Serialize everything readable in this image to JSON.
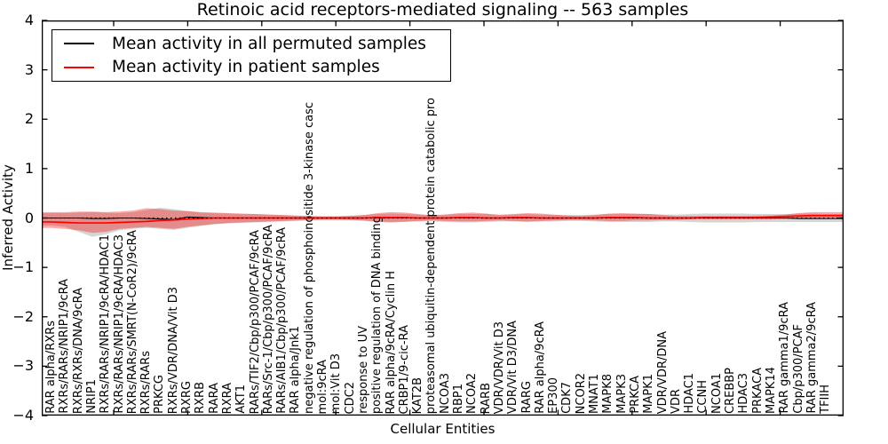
{
  "figure": {
    "title": "Retinoic acid receptors-mediated signaling -- 563 samples",
    "xlabel": "Cellular Entities",
    "ylabel": "Inferred Activity"
  },
  "legend": {
    "entries": [
      {
        "label": "Mean activity in all permuted samples",
        "color": "#000000"
      },
      {
        "label": "Mean activity in patient samples",
        "color": "#ff0000"
      }
    ]
  },
  "chart_data": {
    "type": "line",
    "title": "Retinoic acid receptors-mediated signaling -- 563 samples",
    "xlabel": "Cellular Entities",
    "ylabel": "Inferred Activity",
    "ylim": [
      -4,
      4
    ],
    "yticks": [
      4,
      3,
      2,
      1,
      0,
      -1,
      -2,
      -3,
      -4
    ],
    "ytick_labels": [
      "4",
      "3",
      "2",
      "1",
      "0",
      "−1",
      "−2",
      "−3",
      "−4"
    ],
    "grid": false,
    "legend_position": "upper left",
    "zero_line": {
      "value": 0,
      "style": "dotted",
      "color": "#000000"
    },
    "categories": [
      "RAR alpha/RXRs",
      "RXRs/RARs/NRIP1/9cRA",
      "RXRs/RXRs/DNA/9cRA",
      "NRIP1",
      "RXRs/RARs/NRIP1/9cRA/HDAC1",
      "RXRs/RARs/NRIP1/9cRA/HDAC3",
      "RXRs/RARs/SMRT(N-CoR2)/9cRA",
      "RXRs/RARs",
      "PRKCG",
      "RXRs/VDR/DNA/Vit D3",
      "RXRG",
      "RXRB",
      "RARA",
      "RXRA",
      "AKT1",
      "RARs/TIF2/Cbp/p300/PCAF/9cRA",
      "RARs/Src-1/Cbp/p300/PCAF/9cRA",
      "RARs/AIB1/Cbp/p300/PCAF/9cRA",
      "RAR alpha/Jnk1",
      "negative regulation of phosphoinositide 3-kinase casc",
      "mol:9cRA",
      "mol:Vit D3",
      "CDC2",
      "response to UV",
      "positive regulation of DNA binding",
      "RAR alpha/9cRA/Cyclin H",
      "CRBP1/9-cic-RA",
      "KAT2B",
      "proteasomal ubiquitin-dependent protein catabolic pro",
      "NCOA3",
      "RBP1",
      "NCOA2",
      "RARB",
      "VDR/VDR/Vit D3",
      "VDR/Vit D3/DNA",
      "RARG",
      "RAR alpha/9cRA",
      "EP300",
      "CDK7",
      "NCOR2",
      "MNAT1",
      "MAPK8",
      "MAPK3",
      "PRKCA",
      "MAPK1",
      "VDR/VDR/DNA",
      "VDR",
      "HDAC1",
      "CCNH",
      "NCOA1",
      "CREBBP",
      "HDAC3",
      "PRKACA",
      "MAPK14",
      "RAR gamma1/9cRA",
      "Cbp/p300/PCAF",
      "RAR gamma2/9cRA",
      "TFIIH"
    ],
    "series": [
      {
        "name": "Mean activity in all permuted samples",
        "kind": "line",
        "color": "#000000",
        "values": [
          0,
          0,
          0,
          -0.01,
          -0.01,
          0,
          0,
          -0.01,
          -0.02,
          -0.03,
          0.02,
          0.01,
          0,
          0,
          0,
          0,
          0,
          0,
          0,
          0,
          0,
          0,
          0,
          0,
          0,
          0,
          0,
          0,
          0,
          0,
          0,
          0,
          0,
          0,
          0,
          0,
          0,
          0,
          0,
          0,
          0,
          0,
          0,
          0,
          0,
          0,
          0,
          0,
          0,
          0,
          0,
          0,
          0,
          0,
          0,
          -0.01,
          -0.01,
          -0.01
        ]
      },
      {
        "name": "Mean activity in patient samples",
        "kind": "line",
        "color": "#ff0000",
        "values": [
          -0.08,
          -0.09,
          -0.1,
          -0.1,
          -0.1,
          -0.09,
          -0.08,
          -0.07,
          -0.05,
          -0.04,
          -0.02,
          -0.01,
          0,
          0,
          0,
          0,
          0,
          0,
          0,
          0,
          0,
          0,
          0,
          0,
          0.01,
          0.01,
          0.01,
          0,
          0,
          0,
          0.01,
          0.01,
          0,
          0,
          0.01,
          0.01,
          0,
          0,
          0,
          0,
          0,
          0.01,
          0.01,
          0.01,
          0,
          0,
          0,
          0,
          0.01,
          0.01,
          0.01,
          0.01,
          0.01,
          0.02,
          0.03,
          0.04,
          0.05,
          0.05
        ]
      },
      {
        "name": "Permuted samples confidence band",
        "kind": "band",
        "color": "#909090",
        "opacity": 0.38,
        "upper": [
          0.1,
          0.1,
          0.11,
          0.12,
          0.11,
          0.1,
          0.12,
          0.16,
          0.21,
          0.18,
          0.14,
          0.11,
          0.1,
          0.09,
          0.08,
          0.08,
          0.07,
          0.06,
          0.05,
          0.04,
          0.04,
          0.04,
          0.05,
          0.06,
          0.08,
          0.09,
          0.08,
          0.07,
          0.06,
          0.07,
          0.08,
          0.08,
          0.08,
          0.07,
          0.07,
          0.08,
          0.07,
          0.06,
          0.06,
          0.06,
          0.07,
          0.08,
          0.08,
          0.08,
          0.08,
          0.07,
          0.07,
          0.08,
          0.09,
          0.09,
          0.09,
          0.09,
          0.08,
          0.08,
          0.08,
          0.09,
          0.09,
          0.08
        ],
        "lower": [
          -0.15,
          -0.18,
          -0.28,
          -0.38,
          -0.33,
          -0.25,
          -0.22,
          -0.2,
          -0.22,
          -0.24,
          -0.2,
          -0.16,
          -0.13,
          -0.11,
          -0.1,
          -0.09,
          -0.08,
          -0.07,
          -0.06,
          -0.05,
          -0.05,
          -0.05,
          -0.05,
          -0.06,
          -0.07,
          -0.08,
          -0.07,
          -0.07,
          -0.07,
          -0.08,
          -0.09,
          -0.09,
          -0.08,
          -0.07,
          -0.07,
          -0.08,
          -0.07,
          -0.07,
          -0.06,
          -0.06,
          -0.07,
          -0.08,
          -0.08,
          -0.08,
          -0.08,
          -0.07,
          -0.07,
          -0.08,
          -0.09,
          -0.09,
          -0.09,
          -0.09,
          -0.08,
          -0.08,
          -0.08,
          -0.08,
          -0.08,
          -0.08
        ]
      },
      {
        "name": "Patient samples confidence band",
        "kind": "band",
        "color": "#ff0000",
        "opacity": 0.34,
        "upper": [
          0.12,
          0.12,
          0.13,
          0.13,
          0.12,
          0.13,
          0.15,
          0.2,
          0.18,
          0.15,
          0.14,
          0.12,
          0.11,
          0.1,
          0.09,
          0.08,
          0.07,
          0.06,
          0.05,
          0.04,
          0.03,
          0.03,
          0.04,
          0.06,
          0.1,
          0.12,
          0.11,
          0.08,
          0.05,
          0.07,
          0.1,
          0.11,
          0.09,
          0.06,
          0.08,
          0.1,
          0.09,
          0.07,
          0.05,
          0.04,
          0.06,
          0.09,
          0.1,
          0.09,
          0.08,
          0.06,
          0.04,
          0.04,
          0.04,
          0.04,
          0.04,
          0.04,
          0.05,
          0.05,
          0.07,
          0.1,
          0.12,
          0.12
        ],
        "lower": [
          -0.2,
          -0.22,
          -0.25,
          -0.3,
          -0.28,
          -0.22,
          -0.2,
          -0.18,
          -0.2,
          -0.22,
          -0.18,
          -0.15,
          -0.12,
          -0.1,
          -0.09,
          -0.08,
          -0.07,
          -0.06,
          -0.05,
          -0.04,
          -0.03,
          -0.03,
          -0.04,
          -0.05,
          -0.08,
          -0.09,
          -0.08,
          -0.06,
          -0.05,
          -0.06,
          -0.07,
          -0.07,
          -0.06,
          -0.05,
          -0.06,
          -0.07,
          -0.06,
          -0.05,
          -0.04,
          -0.04,
          -0.05,
          -0.06,
          -0.06,
          -0.05,
          -0.05,
          -0.04,
          -0.04,
          -0.03,
          -0.03,
          -0.03,
          -0.03,
          -0.03,
          -0.03,
          -0.03,
          -0.02,
          -0.01,
          0.0,
          0.01
        ]
      }
    ]
  }
}
